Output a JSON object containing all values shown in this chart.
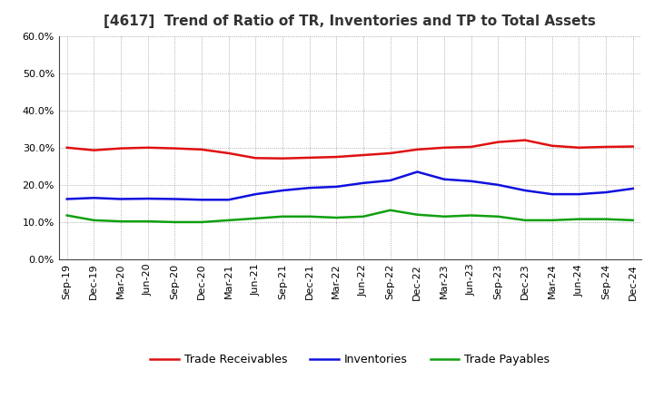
{
  "title": "[4617]  Trend of Ratio of TR, Inventories and TP to Total Assets",
  "x_labels": [
    "Sep-19",
    "Dec-19",
    "Mar-20",
    "Jun-20",
    "Sep-20",
    "Dec-20",
    "Mar-21",
    "Jun-21",
    "Sep-21",
    "Dec-21",
    "Mar-22",
    "Jun-22",
    "Sep-22",
    "Dec-22",
    "Mar-23",
    "Jun-23",
    "Sep-23",
    "Dec-23",
    "Mar-24",
    "Jun-24",
    "Sep-24",
    "Dec-24"
  ],
  "trade_receivables": [
    30.0,
    29.3,
    29.8,
    30.0,
    29.8,
    29.5,
    28.5,
    27.2,
    27.1,
    27.3,
    27.5,
    28.0,
    28.5,
    29.5,
    30.0,
    30.2,
    31.5,
    32.0,
    30.5,
    30.0,
    30.2,
    30.3
  ],
  "inventories": [
    16.2,
    16.5,
    16.2,
    16.3,
    16.2,
    16.0,
    16.0,
    17.5,
    18.5,
    19.2,
    19.5,
    20.5,
    21.2,
    23.5,
    21.5,
    21.0,
    20.0,
    18.5,
    17.5,
    17.5,
    18.0,
    19.0
  ],
  "trade_payables": [
    11.8,
    10.5,
    10.2,
    10.2,
    10.0,
    10.0,
    10.5,
    11.0,
    11.5,
    11.5,
    11.2,
    11.5,
    13.2,
    12.0,
    11.5,
    11.8,
    11.5,
    10.5,
    10.5,
    10.8,
    10.8,
    10.5
  ],
  "trade_receivables_color": "#e01010",
  "inventories_color": "#1010e0",
  "trade_payables_color": "#10a010",
  "ylim": [
    0,
    60
  ],
  "yticks": [
    0,
    10,
    20,
    30,
    40,
    50,
    60
  ],
  "ytick_labels": [
    "0.0%",
    "10.0%",
    "20.0%",
    "30.0%",
    "40.0%",
    "50.0%",
    "60.0%"
  ],
  "legend_labels": [
    "Trade Receivables",
    "Inventories",
    "Trade Payables"
  ],
  "background_color": "#ffffff",
  "grid_color": "#999999",
  "line_width": 1.8,
  "title_fontsize": 11,
  "tick_fontsize": 8,
  "legend_fontsize": 9
}
